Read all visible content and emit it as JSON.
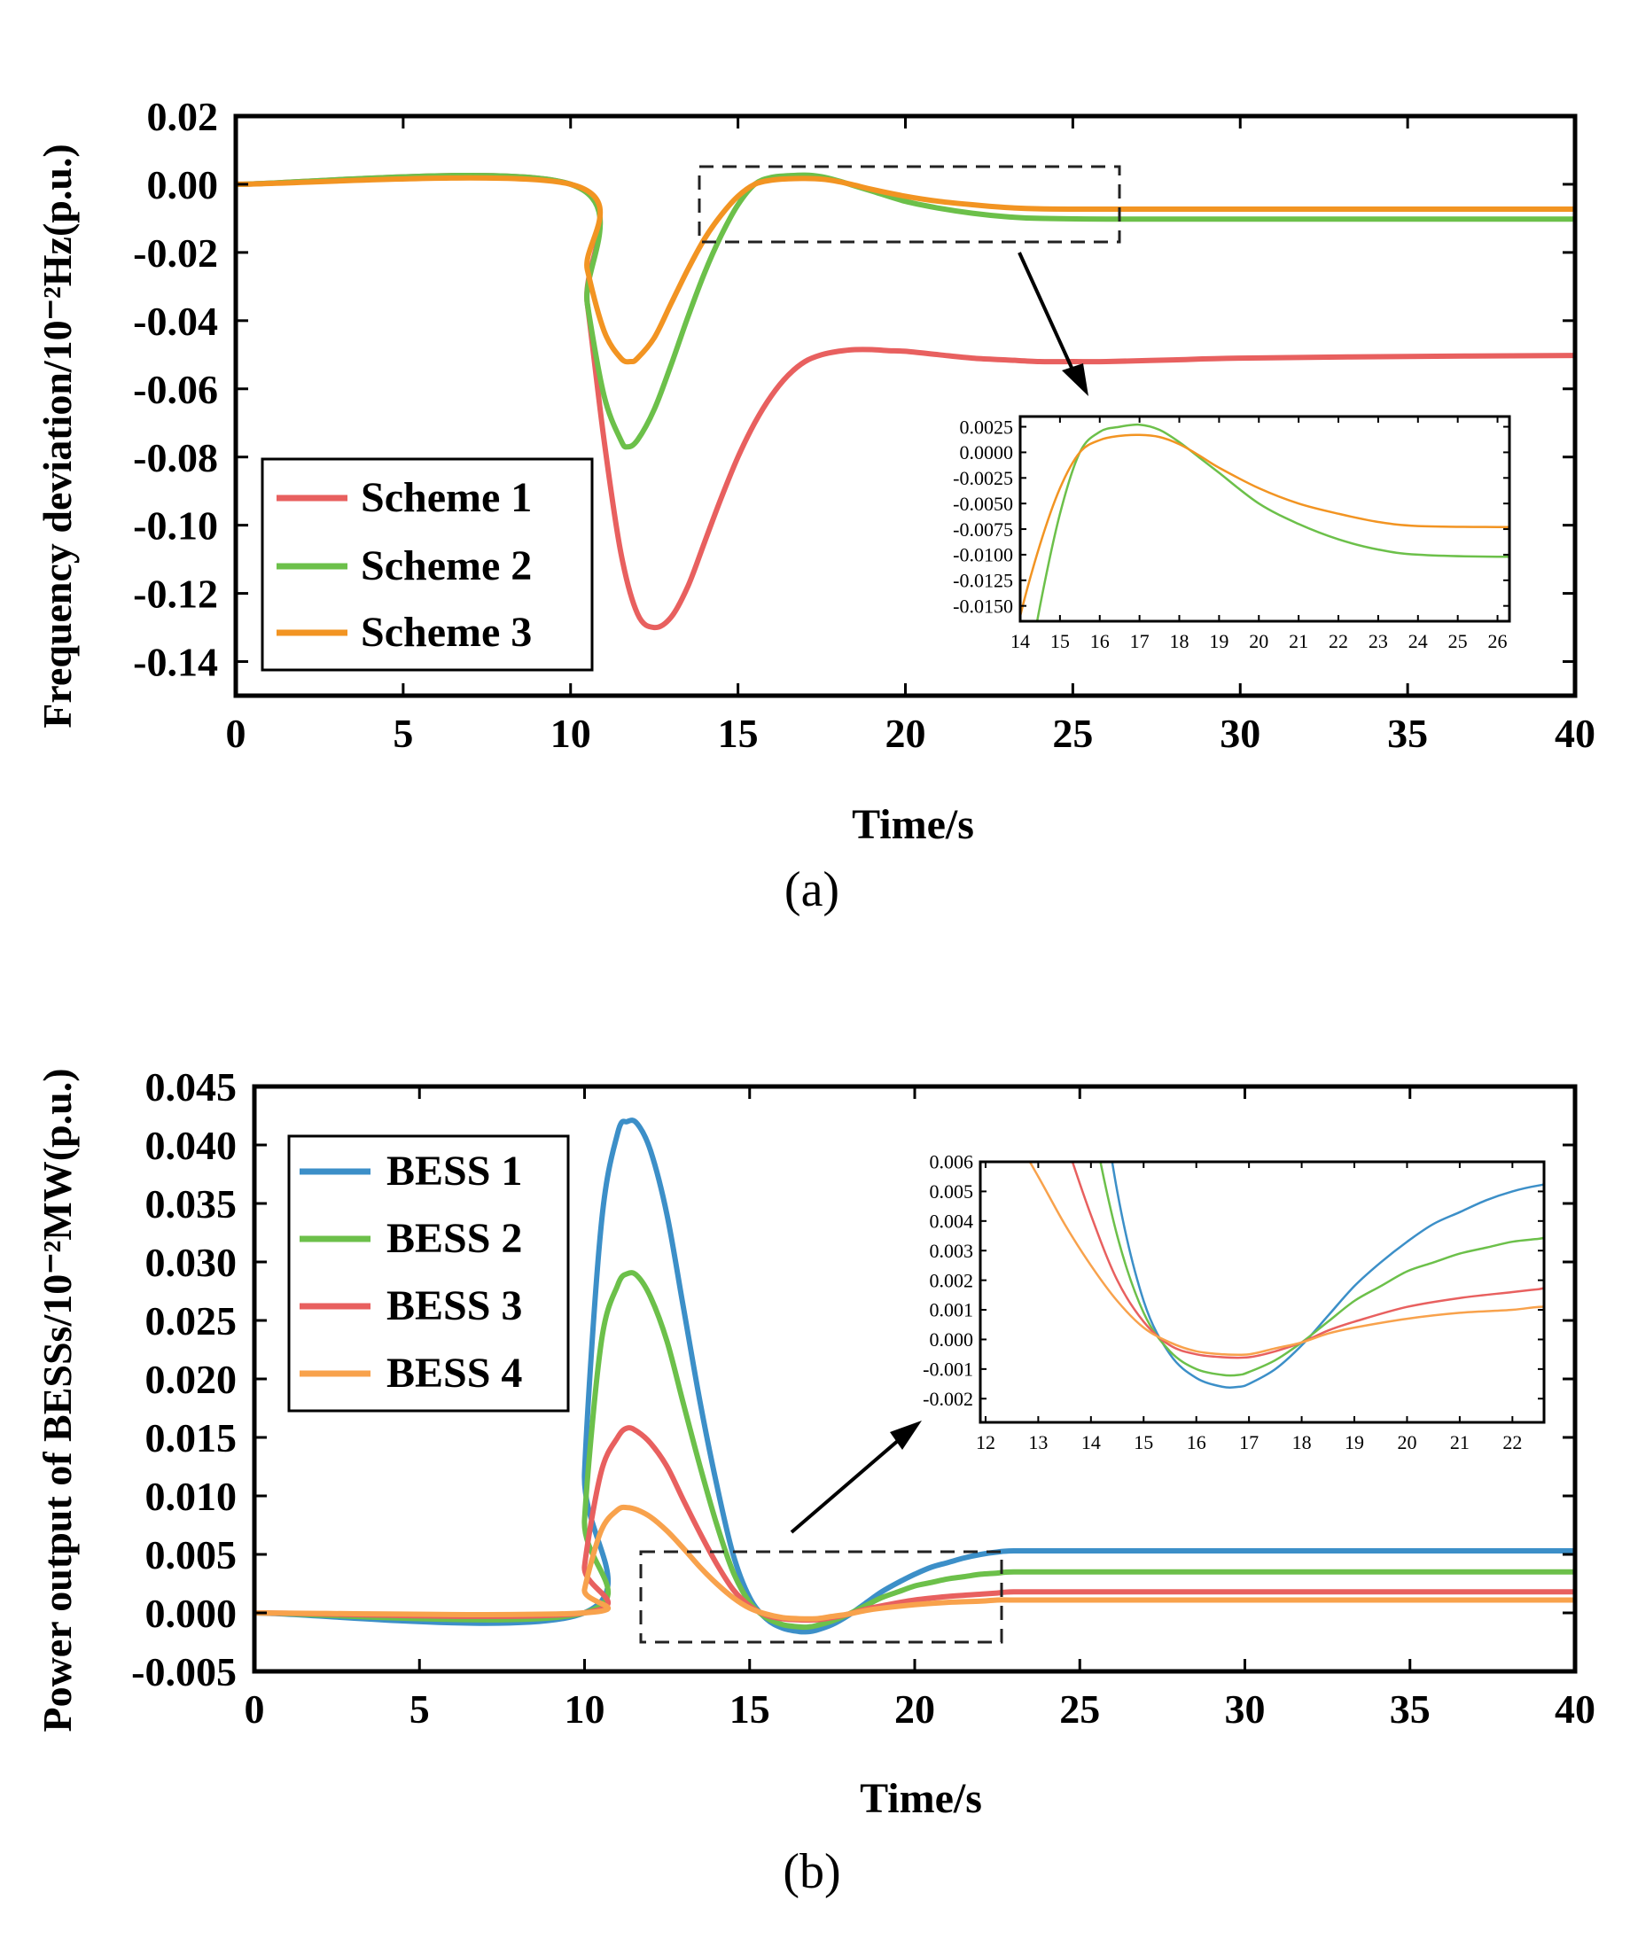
{
  "chart_data": [
    {
      "type": "line",
      "panel_label": "(a)",
      "xlabel": "Time/s",
      "ylabel": "Frequency deviation/10⁻²Hz(p.u.)",
      "xlim": [
        0,
        40
      ],
      "ylim": [
        -0.15,
        0.02
      ],
      "xticks": [
        "0",
        "5",
        "10",
        "15",
        "20",
        "25",
        "30",
        "35",
        "40"
      ],
      "yticks": [
        "0.02",
        "0.00",
        "-0.02",
        "-0.04",
        "-0.06",
        "-0.08",
        "-0.10",
        "-0.12",
        "-0.14"
      ],
      "legend_position": "lower-left",
      "series": [
        {
          "name": "Scheme 1",
          "color": "#e8605f",
          "x": [
            0,
            10,
            10.5,
            11,
            11.5,
            12,
            12.5,
            13,
            13.5,
            14,
            14.5,
            15,
            15.5,
            16,
            16.5,
            17,
            17.5,
            18,
            18.5,
            19,
            19.5,
            20,
            21,
            22,
            23,
            24,
            25,
            26,
            28,
            30,
            35,
            40
          ],
          "y": [
            0,
            0,
            -0.035,
            -0.075,
            -0.108,
            -0.126,
            -0.13,
            -0.127,
            -0.118,
            -0.105,
            -0.092,
            -0.08,
            -0.07,
            -0.062,
            -0.056,
            -0.052,
            -0.05,
            -0.049,
            -0.0485,
            -0.0485,
            -0.0488,
            -0.049,
            -0.05,
            -0.051,
            -0.0515,
            -0.052,
            -0.052,
            -0.052,
            -0.0515,
            -0.051,
            -0.0505,
            -0.0502
          ]
        },
        {
          "name": "Scheme 2",
          "color": "#6cc04a",
          "x": [
            0,
            10,
            10.5,
            11,
            11.5,
            11.7,
            12,
            12.5,
            13,
            13.5,
            14,
            14.5,
            15,
            15.5,
            16,
            16.5,
            17,
            17.5,
            18,
            18.5,
            19,
            20,
            21,
            22,
            23,
            24,
            26,
            30,
            35,
            40
          ],
          "y": [
            0,
            0,
            -0.035,
            -0.062,
            -0.075,
            -0.077,
            -0.075,
            -0.066,
            -0.053,
            -0.039,
            -0.026,
            -0.015,
            -0.006,
            0,
            0.002,
            0.0025,
            0.0027,
            0.0022,
            0.001,
            -0.0005,
            -0.002,
            -0.005,
            -0.007,
            -0.0085,
            -0.0095,
            -0.01,
            -0.0102,
            -0.0102,
            -0.0102,
            -0.0102
          ]
        },
        {
          "name": "Scheme 3",
          "color": "#f29422",
          "x": [
            0,
            10,
            10.5,
            11,
            11.5,
            11.8,
            12,
            12.5,
            13,
            13.5,
            14,
            14.5,
            15,
            15.5,
            16,
            16.5,
            17,
            17.5,
            18,
            18.5,
            19,
            20,
            21,
            22,
            23,
            24,
            26,
            30,
            35,
            40
          ],
          "y": [
            0,
            0,
            -0.025,
            -0.043,
            -0.051,
            -0.052,
            -0.051,
            -0.045,
            -0.035,
            -0.025,
            -0.016,
            -0.009,
            -0.0035,
            0,
            0.0012,
            0.0016,
            0.0017,
            0.0015,
            0.0008,
            -0.0003,
            -0.0015,
            -0.0035,
            -0.005,
            -0.006,
            -0.0068,
            -0.0072,
            -0.0073,
            -0.0073,
            -0.0073,
            -0.0073
          ]
        }
      ],
      "inset": {
        "xlim": [
          14,
          26.3
        ],
        "ylim": [
          -0.0165,
          0.0035
        ],
        "xticks": [
          "14",
          "15",
          "16",
          "17",
          "18",
          "19",
          "20",
          "21",
          "22",
          "23",
          "24",
          "25",
          "26"
        ],
        "yticks": [
          "0.0025",
          "0.0000",
          "-0.0025",
          "-0.0050",
          "-0.0075",
          "-0.0100",
          "-0.0125",
          "-0.0150"
        ],
        "zoom_box": {
          "x": [
            13.8,
            26.5
          ],
          "y": [
            -0.017,
            0.005
          ]
        }
      }
    },
    {
      "type": "line",
      "panel_label": "(b)",
      "xlabel": "Time/s",
      "ylabel": "Power output of BESSs/10⁻²MW(p.u.)",
      "xlim": [
        0,
        40
      ],
      "ylim": [
        -0.005,
        0.045
      ],
      "xticks": [
        "0",
        "5",
        "10",
        "15",
        "20",
        "25",
        "30",
        "35",
        "40"
      ],
      "yticks": [
        "0.045",
        "0.040",
        "0.035",
        "0.030",
        "0.025",
        "0.020",
        "0.015",
        "0.010",
        "0.005",
        "0.000",
        "-0.005"
      ],
      "legend_position": "upper-left",
      "series": [
        {
          "name": "BESS 1",
          "color": "#3c8fc8",
          "x": [
            0,
            9.99,
            10,
            10.5,
            11,
            11.3,
            11.6,
            12,
            12.5,
            13,
            13.5,
            14,
            14.5,
            15,
            15.5,
            16,
            16.5,
            16.8,
            17,
            17.5,
            18,
            18.5,
            19,
            19.5,
            20,
            20.5,
            21,
            21.5,
            22,
            22.5,
            23,
            25,
            30,
            40
          ],
          "y": [
            0,
            0,
            0.012,
            0.033,
            0.041,
            0.042,
            0.0418,
            0.0395,
            0.034,
            0.026,
            0.018,
            0.011,
            0.005,
            0.0013,
            -0.0005,
            -0.0013,
            -0.0016,
            -0.0016,
            -0.0015,
            -0.001,
            -0.0002,
            0.0008,
            0.0018,
            0.0026,
            0.0033,
            0.0039,
            0.0043,
            0.0047,
            0.005,
            0.0052,
            0.0053,
            0.0053,
            0.0053,
            0.0053
          ]
        },
        {
          "name": "BESS 2",
          "color": "#6cc04a",
          "x": [
            0,
            9.99,
            10,
            10.5,
            11,
            11.3,
            11.6,
            12,
            12.5,
            13,
            13.5,
            14,
            14.5,
            15,
            15.5,
            16,
            16.5,
            16.8,
            17,
            17.5,
            18,
            18.5,
            19,
            19.5,
            20,
            20.5,
            21,
            21.5,
            22,
            22.5,
            23,
            25,
            30,
            40
          ],
          "y": [
            0,
            0,
            0.008,
            0.023,
            0.028,
            0.029,
            0.0288,
            0.027,
            0.0232,
            0.0178,
            0.0125,
            0.0076,
            0.0035,
            0.0009,
            -0.0004,
            -0.001,
            -0.0012,
            -0.0012,
            -0.0011,
            -0.0007,
            -0.0001,
            0.0006,
            0.0013,
            0.0018,
            0.0023,
            0.0026,
            0.0029,
            0.0031,
            0.0033,
            0.0034,
            0.0035,
            0.0035,
            0.0035,
            0.0035
          ]
        },
        {
          "name": "BESS 3",
          "color": "#e8605f",
          "x": [
            0,
            9.99,
            10,
            10.5,
            11,
            11.3,
            11.6,
            12,
            12.5,
            13,
            13.5,
            14,
            14.5,
            15,
            15.5,
            16,
            16.5,
            17,
            17.5,
            18,
            18.5,
            19,
            20,
            21,
            22,
            22.5,
            23,
            25,
            30,
            40
          ],
          "y": [
            0,
            0,
            0.004,
            0.012,
            0.015,
            0.0158,
            0.0155,
            0.0145,
            0.0125,
            0.0096,
            0.0068,
            0.0042,
            0.002,
            0.0006,
            -0.0002,
            -0.0005,
            -0.0006,
            -0.0006,
            -0.0004,
            -0.0001,
            0.0003,
            0.0006,
            0.0011,
            0.0014,
            0.0016,
            0.0017,
            0.0018,
            0.0018,
            0.0018,
            0.0018
          ]
        },
        {
          "name": "BESS 4",
          "color": "#f8a24c",
          "x": [
            0,
            9.99,
            10,
            10.5,
            11,
            11.3,
            11.6,
            12,
            12.5,
            13,
            13.5,
            14,
            14.5,
            15,
            15.5,
            16,
            16.5,
            17,
            17.5,
            18,
            18.5,
            19,
            20,
            21,
            22,
            22.5,
            23,
            25,
            30,
            40
          ],
          "y": [
            0,
            0,
            0.002,
            0.007,
            0.0088,
            0.009,
            0.0088,
            0.0082,
            0.007,
            0.0055,
            0.0039,
            0.0025,
            0.0013,
            0.0004,
            -0.0001,
            -0.0004,
            -0.0005,
            -0.0005,
            -0.0003,
            -0.0001,
            0.0002,
            0.0004,
            0.0007,
            0.0009,
            0.001,
            0.0011,
            0.0011,
            0.0011,
            0.0011,
            0.0011
          ]
        }
      ],
      "inset": {
        "xlim": [
          11.9,
          22.6
        ],
        "ylim": [
          -0.0028,
          0.006
        ],
        "xticks": [
          "12",
          "13",
          "14",
          "15",
          "16",
          "17",
          "18",
          "19",
          "20",
          "21",
          "22"
        ],
        "yticks": [
          "0.006",
          "0.005",
          "0.004",
          "0.003",
          "0.002",
          "0.001",
          "0.000",
          "-0.001",
          "-0.002"
        ],
        "zoom_box": {
          "x": [
            11.6,
            22.6
          ],
          "y": [
            -0.0025,
            0.0062
          ]
        }
      }
    }
  ]
}
